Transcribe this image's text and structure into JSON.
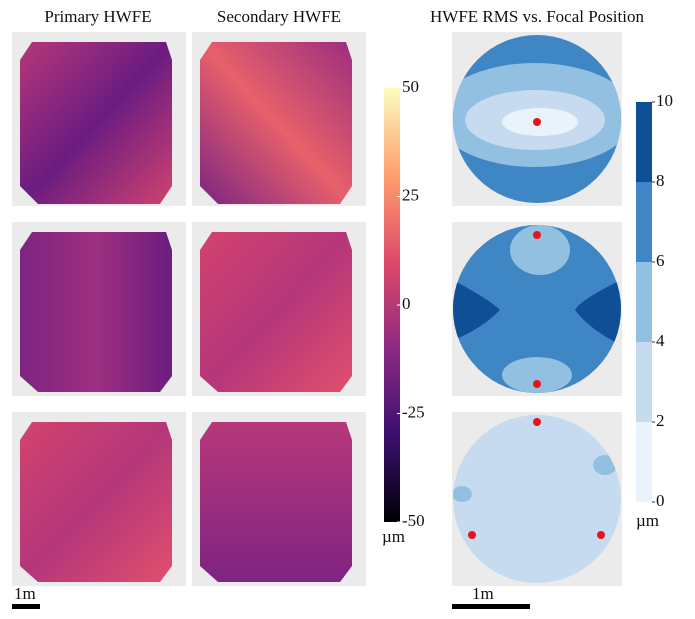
{
  "chart_data": [
    {
      "type": "heatmap",
      "titles": [
        "Primary HWFE",
        "Secondary HWFE"
      ],
      "colorbar": {
        "lim": [
          -50,
          50
        ],
        "ticks": [
          -50,
          -25,
          0,
          25,
          50
        ],
        "unit": "µm",
        "colors": [
          "#000004",
          "#3b0f70",
          "#8c2981",
          "#de4968",
          "#fe9f6d",
          "#fcfdbf"
        ]
      },
      "scale_label": "1m"
    },
    {
      "type": "contour",
      "title": "HWFE RMS vs. Focal Position",
      "colorbar": {
        "lim": [
          0,
          10
        ],
        "ticks": [
          0,
          2,
          4,
          6,
          8,
          10
        ],
        "unit": "µm",
        "colors": [
          "#eaf3fb",
          "#c6dbef",
          "#92c0e0",
          "#3f86c4",
          "#0e4f96"
        ]
      },
      "scale_label": "1m"
    }
  ]
}
